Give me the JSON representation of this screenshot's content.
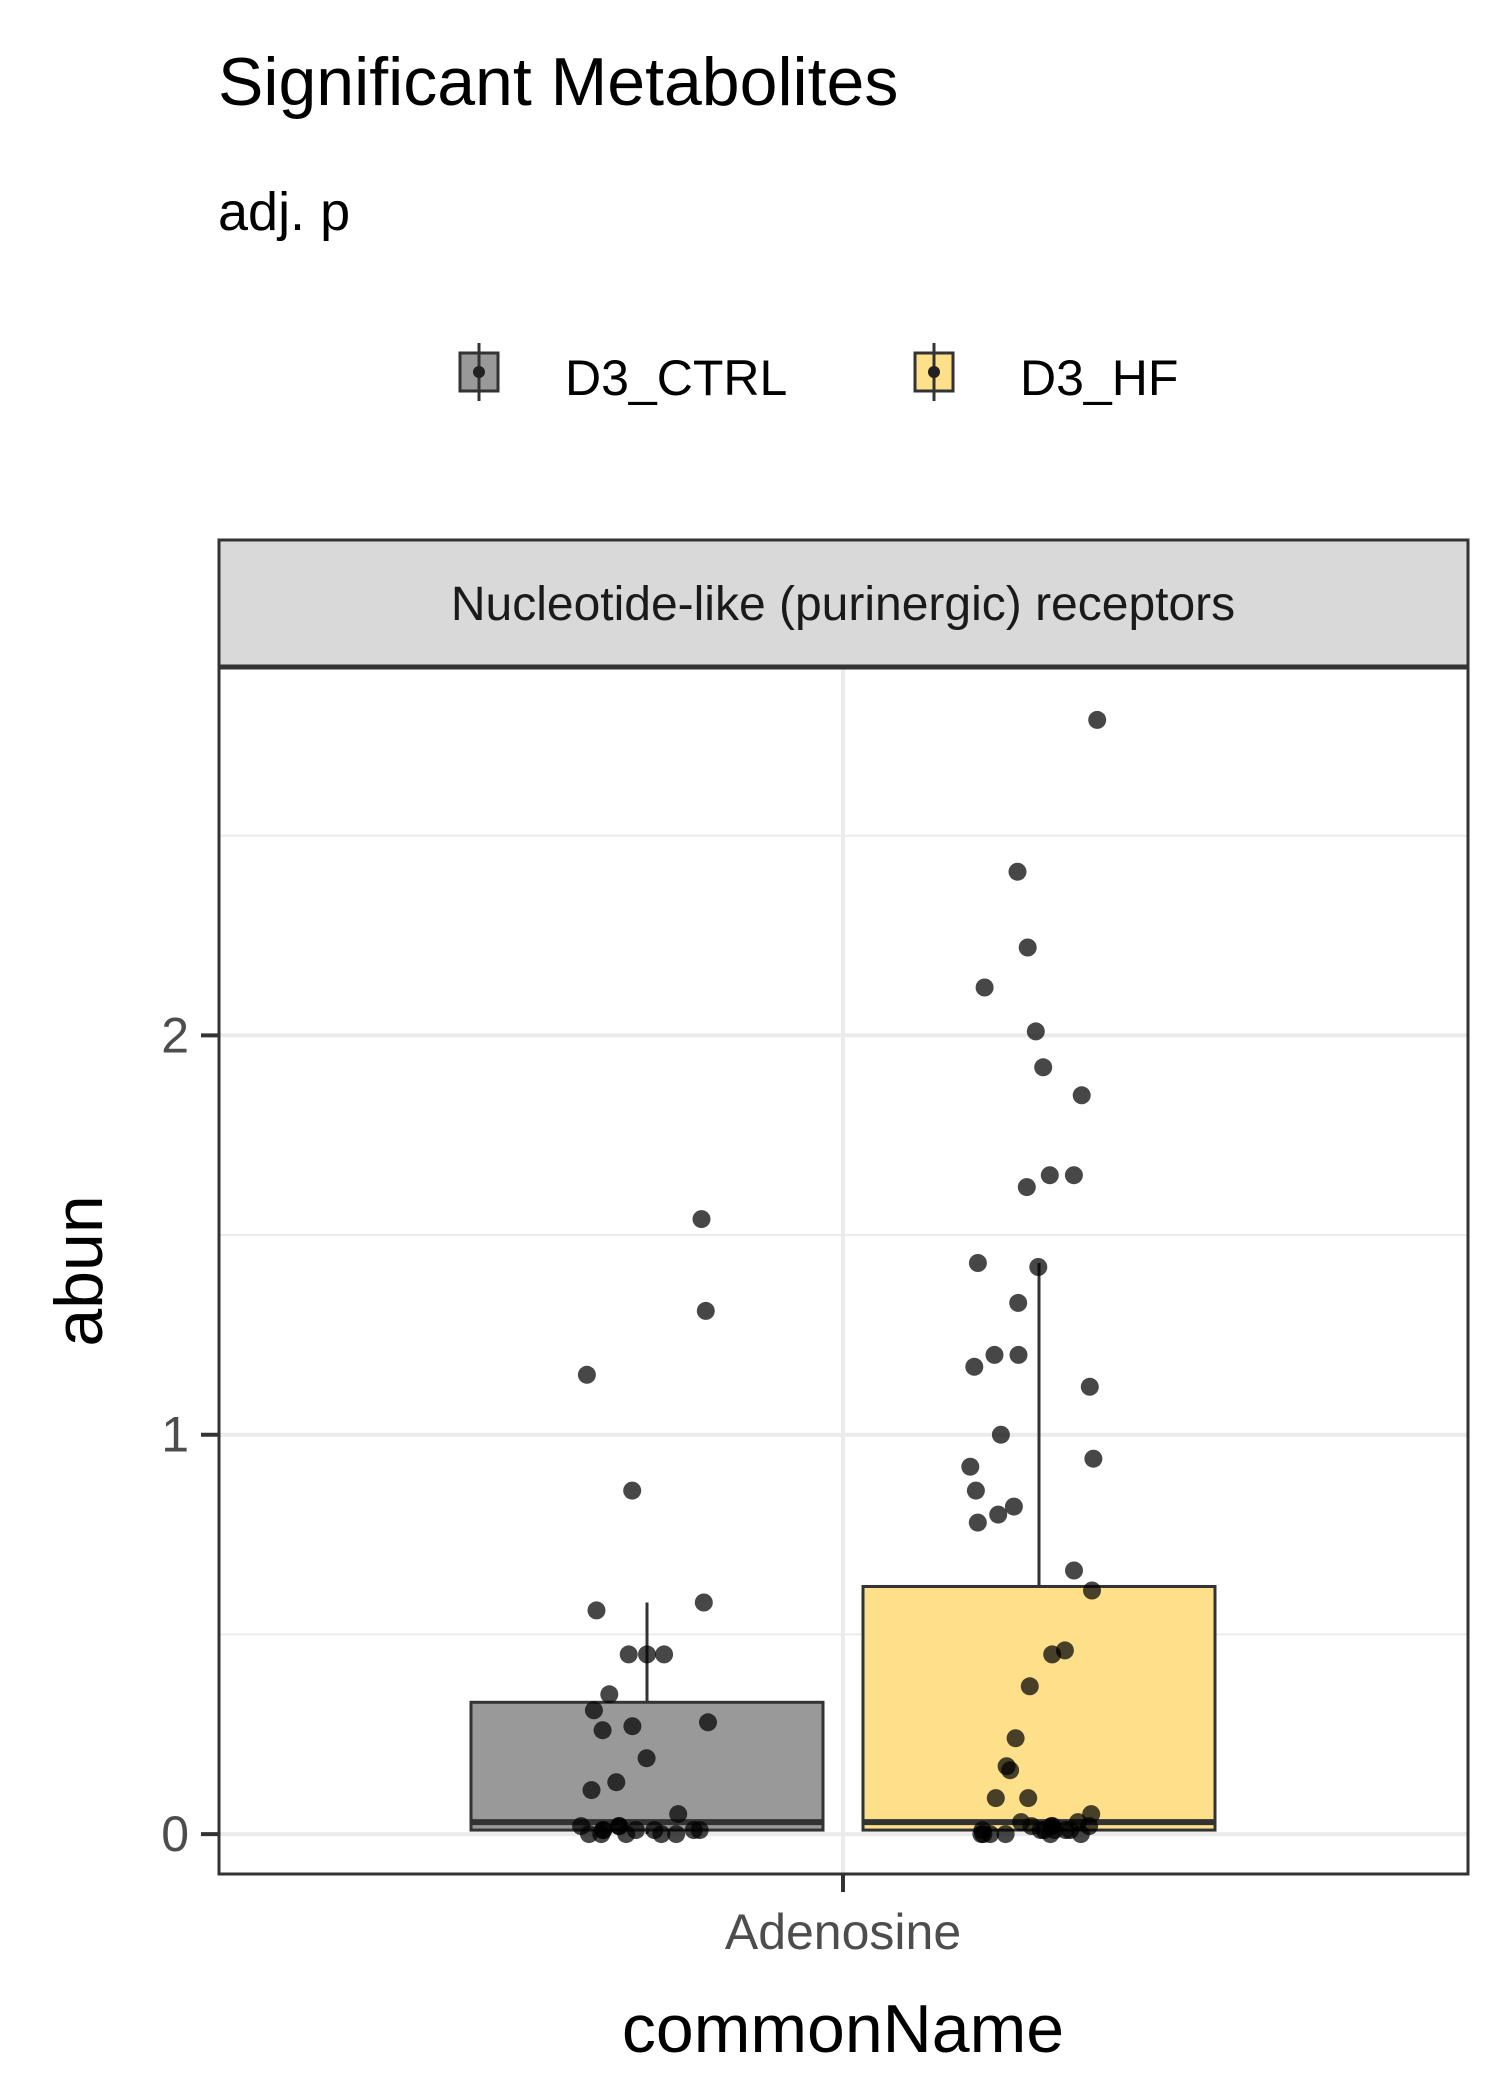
{
  "chart_data": {
    "type": "box",
    "title": "Significant Metabolites",
    "subtitle": "adj. p",
    "facet_label": "Nucleotide-like (purinergic) receptors",
    "xlabel": "commonName",
    "ylabel": "abun",
    "categories": [
      "Adenosine"
    ],
    "y_ticks": [
      0,
      1,
      2
    ],
    "ylim": [
      -0.1,
      2.92
    ],
    "grid": true,
    "legend_position": "top",
    "series": [
      {
        "name": "D3_CTRL",
        "color": "#999999",
        "box": {
          "q1": 0.01,
          "median": 0.03,
          "q3": 0.33,
          "whisker_low": 0.0,
          "whisker_high": 0.58
        },
        "points": [
          1.54,
          1.31,
          1.15,
          0.86,
          0.58,
          0.56,
          0.45,
          0.45,
          0.45,
          0.35,
          0.31,
          0.28,
          0.27,
          0.26,
          0.19,
          0.13,
          0.11,
          0.05,
          0.02,
          0.02,
          0.02,
          0.01,
          0.01,
          0.01,
          0.01,
          0.01,
          0.01,
          0.0,
          0.0,
          0.0,
          0.0,
          0.0
        ]
      },
      {
        "name": "D3_HF",
        "color": "#FEE08B",
        "box": {
          "q1": 0.01,
          "median": 0.03,
          "q3": 0.62,
          "whisker_low": 0.0,
          "whisker_high": 1.43
        },
        "points": [
          2.79,
          2.41,
          2.22,
          2.12,
          2.01,
          1.92,
          1.85,
          1.65,
          1.65,
          1.62,
          1.43,
          1.42,
          1.33,
          1.2,
          1.2,
          1.17,
          1.12,
          1.0,
          0.94,
          0.92,
          0.86,
          0.82,
          0.8,
          0.78,
          0.66,
          0.61,
          0.46,
          0.45,
          0.37,
          0.24,
          0.17,
          0.16,
          0.09,
          0.09,
          0.05,
          0.03,
          0.03,
          0.02,
          0.02,
          0.02,
          0.02,
          0.01,
          0.01,
          0.01,
          0.01,
          0.01,
          0.01,
          0.0,
          0.0,
          0.0,
          0.0,
          0.0,
          0.0
        ]
      }
    ]
  }
}
